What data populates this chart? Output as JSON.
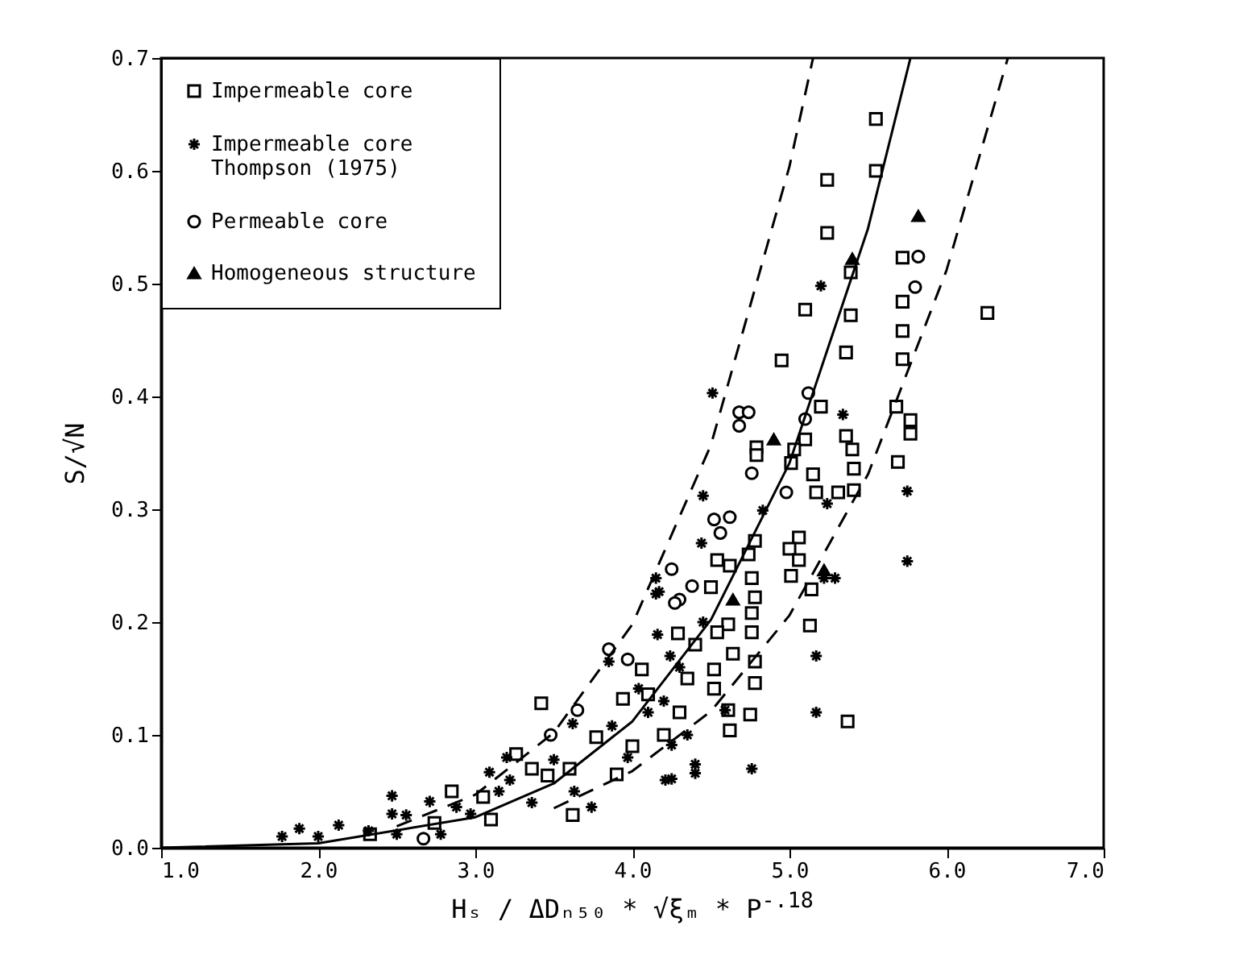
{
  "chart_data": {
    "type": "scatter",
    "xlabel": "Hₛ / ΔDₙ₅₀ * √ξₘ * P$^{-.18}$",
    "ylabel": "S/√N",
    "xlim": [
      1,
      7
    ],
    "ylim": [
      0,
      0.7
    ],
    "xticks": [
      {
        "value": 1,
        "label": "1.0"
      },
      {
        "value": 2,
        "label": "2.0"
      },
      {
        "value": 3,
        "label": "3.0"
      },
      {
        "value": 4,
        "label": "4.0"
      },
      {
        "value": 5,
        "label": "5.0"
      },
      {
        "value": 6,
        "label": "6.0"
      },
      {
        "value": 7,
        "label": "7.0"
      }
    ],
    "yticks": [
      {
        "value": 0,
        "label": "0.0"
      },
      0.1,
      0.2,
      0.3,
      0.4,
      0.5,
      0.6,
      0.7
    ],
    "grid": false,
    "legend": "top left",
    "series": [
      {
        "name": "Impermeable core",
        "type": "scatter",
        "marker": "square",
        "color": "#000000",
        "x": [
          5.55,
          5.55,
          5.24,
          5.24,
          5.39,
          5.72,
          5.1,
          5.39,
          5.72,
          5.72,
          5.36,
          5.72,
          4.95,
          6.26,
          5.2,
          5.68,
          5.77,
          5.77,
          5.36,
          4.79,
          5.1,
          5.4,
          5.41,
          5.69,
          4.79,
          5.03,
          5.01,
          5.15,
          5.17,
          5.31,
          5.41,
          5.06,
          5.0,
          5.06,
          5.01,
          5.14,
          5.13,
          4.78,
          4.74,
          4.54,
          4.62,
          4.5,
          4.76,
          4.78,
          4.76,
          4.61,
          4.54,
          4.76,
          4.64,
          4.52,
          4.78,
          4.78,
          4.52,
          4.61,
          4.75,
          4.62,
          5.37,
          4.06,
          2.85,
          3.26,
          3.42,
          4.2,
          3.62,
          3.36,
          3.05,
          3.1,
          3.6,
          3.77,
          3.94,
          4.1,
          4.29,
          2.74,
          3.46,
          4.35,
          4.3,
          4.4,
          4.0,
          2.33,
          3.9
        ],
        "values": [
          0.646,
          0.6,
          0.592,
          0.545,
          0.51,
          0.523,
          0.477,
          0.472,
          0.484,
          0.458,
          0.439,
          0.433,
          0.432,
          0.474,
          0.391,
          0.391,
          0.379,
          0.367,
          0.365,
          0.355,
          0.362,
          0.353,
          0.336,
          0.342,
          0.348,
          0.353,
          0.341,
          0.331,
          0.315,
          0.315,
          0.317,
          0.275,
          0.265,
          0.255,
          0.241,
          0.229,
          0.197,
          0.272,
          0.26,
          0.255,
          0.25,
          0.231,
          0.239,
          0.222,
          0.208,
          0.198,
          0.191,
          0.191,
          0.172,
          0.158,
          0.165,
          0.146,
          0.141,
          0.122,
          0.118,
          0.104,
          0.112,
          0.158,
          0.05,
          0.083,
          0.128,
          0.1,
          0.029,
          0.07,
          0.045,
          0.025,
          0.07,
          0.098,
          0.132,
          0.136,
          0.19,
          0.022,
          0.064,
          0.15,
          0.12,
          0.18,
          0.09,
          0.012,
          0.065
        ]
      },
      {
        "name": "Impermeable core\nThompson (1975)",
        "type": "scatter",
        "marker": "cross",
        "color": "#000000",
        "x": [
          5.2,
          4.51,
          5.34,
          5.75,
          5.75,
          4.45,
          4.83,
          4.44,
          4.15,
          4.17,
          4.16,
          5.22,
          5.29,
          5.17,
          5.17,
          4.59,
          4.25,
          4.25,
          4.4,
          4.4,
          4.76,
          5.24,
          1.77,
          1.88,
          2.13,
          2.32,
          2.0,
          2.47,
          2.47,
          2.56,
          2.71,
          2.78,
          3.09,
          3.62,
          3.85,
          4.15,
          4.21,
          3.22,
          2.97,
          3.36,
          3.63,
          3.87,
          4.04,
          3.97,
          3.74,
          4.24,
          2.5,
          2.88,
          3.15,
          3.5,
          3.2,
          4.45,
          4.35,
          4.2,
          4.1,
          4.3
        ],
        "values": [
          0.498,
          0.403,
          0.384,
          0.316,
          0.254,
          0.312,
          0.299,
          0.27,
          0.239,
          0.227,
          0.189,
          0.239,
          0.239,
          0.17,
          0.12,
          0.122,
          0.091,
          0.061,
          0.074,
          0.066,
          0.07,
          0.305,
          0.01,
          0.017,
          0.02,
          0.015,
          0.01,
          0.046,
          0.03,
          0.029,
          0.041,
          0.012,
          0.067,
          0.11,
          0.165,
          0.225,
          0.06,
          0.06,
          0.03,
          0.04,
          0.05,
          0.108,
          0.141,
          0.08,
          0.036,
          0.17,
          0.012,
          0.036,
          0.05,
          0.078,
          0.08,
          0.2,
          0.1,
          0.13,
          0.12,
          0.16
        ]
      },
      {
        "name": "Permeable core",
        "type": "scatter",
        "marker": "circle",
        "color": "#000000",
        "x": [
          5.82,
          5.8,
          5.12,
          5.1,
          4.68,
          4.74,
          4.68,
          4.76,
          4.98,
          4.62,
          4.52,
          4.56,
          4.25,
          4.38,
          4.3,
          3.48,
          3.65,
          3.85,
          3.97,
          4.27,
          2.67
        ],
        "values": [
          0.524,
          0.497,
          0.403,
          0.38,
          0.386,
          0.386,
          0.374,
          0.332,
          0.315,
          0.293,
          0.291,
          0.279,
          0.247,
          0.232,
          0.22,
          0.1,
          0.122,
          0.176,
          0.167,
          0.217,
          0.008
        ]
      },
      {
        "name": "Homogeneous structure",
        "type": "scatter",
        "marker": "triangle",
        "color": "#000000",
        "x": [
          5.82,
          5.4,
          4.9,
          4.64,
          5.22
        ],
        "values": [
          0.56,
          0.522,
          0.362,
          0.22,
          0.246
        ]
      },
      {
        "type": "line",
        "line_style": "solid",
        "color": "#000000",
        "x": [
          1.0,
          2.0,
          3.0,
          3.5,
          4.0,
          4.5,
          5.0,
          5.5,
          5.77
        ],
        "values": [
          0.0,
          0.004,
          0.027,
          0.057,
          0.112,
          0.202,
          0.341,
          0.549,
          0.7
        ]
      },
      {
        "type": "line",
        "line_style": "dashed",
        "color": "#000000",
        "x": [
          2.5,
          3.0,
          3.5,
          4.0,
          4.5,
          5.0,
          5.15
        ],
        "values": [
          0.019,
          0.047,
          0.102,
          0.198,
          0.357,
          0.604,
          0.7
        ]
      },
      {
        "type": "line",
        "line_style": "dashed",
        "color": "#000000",
        "x": [
          3.5,
          4.0,
          4.5,
          5.0,
          5.5,
          6.0,
          6.39
        ],
        "values": [
          0.035,
          0.068,
          0.121,
          0.206,
          0.331,
          0.512,
          0.7
        ]
      }
    ]
  }
}
